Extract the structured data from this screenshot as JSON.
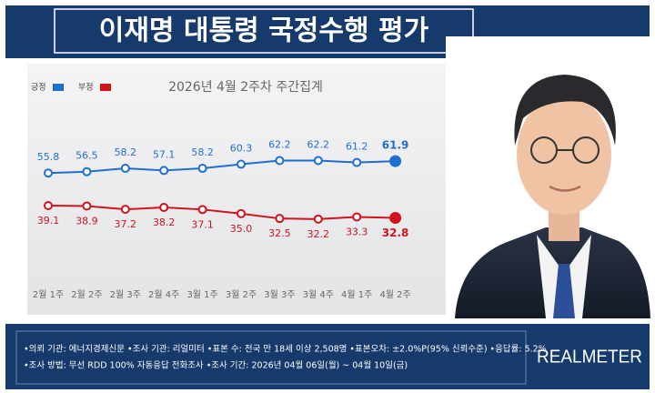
{
  "chart_data": {
    "type": "line",
    "title": "이재명 대통령 국정수행 평가",
    "subtitle": "2026년 4월 2주차 주간집계",
    "categories": [
      "2월 1주",
      "2월 2주",
      "2월 3주",
      "2월 4주",
      "3월 1주",
      "3월 2주",
      "3월 3주",
      "3월 4주",
      "4월 1주",
      "4월 2주"
    ],
    "series": [
      {
        "name": "긍정",
        "color": "#1f6fd1",
        "values": [
          55.8,
          56.5,
          58.2,
          57.1,
          58.2,
          60.3,
          62.2,
          62.2,
          61.2,
          61.9
        ],
        "value_labels": [
          "55.8",
          "56.5",
          "58.2",
          "57.1",
          "58.2",
          "60.3",
          "62.2",
          "62.2",
          "61.2",
          "61.9"
        ]
      },
      {
        "name": "부정",
        "color": "#d2121b",
        "values": [
          39.1,
          38.9,
          37.2,
          38.2,
          37.1,
          35.0,
          32.5,
          32.2,
          33.3,
          32.8
        ],
        "value_labels": [
          "39.1",
          "38.9",
          "37.2",
          "38.2",
          "37.1",
          "35.0",
          "32.5",
          "32.2",
          "33.3",
          "32.8"
        ]
      }
    ],
    "ylim": [
      20,
      75
    ],
    "footnotes": [
      "•의뢰 기관: 에너지경제신문  •조사 기관: 리얼미터  •표본 수: 전국 만 18세 이상 2,508명  •표본오차: ±2.0%P(95% 신뢰수준)  •응답률: 5.2%",
      "•조사 방법: 무선 RDD 100% 자동응답 전화조사  •조사 기간: 2026년 04월 06일(월) ~ 04월 10일(금)"
    ],
    "logo": "REALMETER"
  }
}
